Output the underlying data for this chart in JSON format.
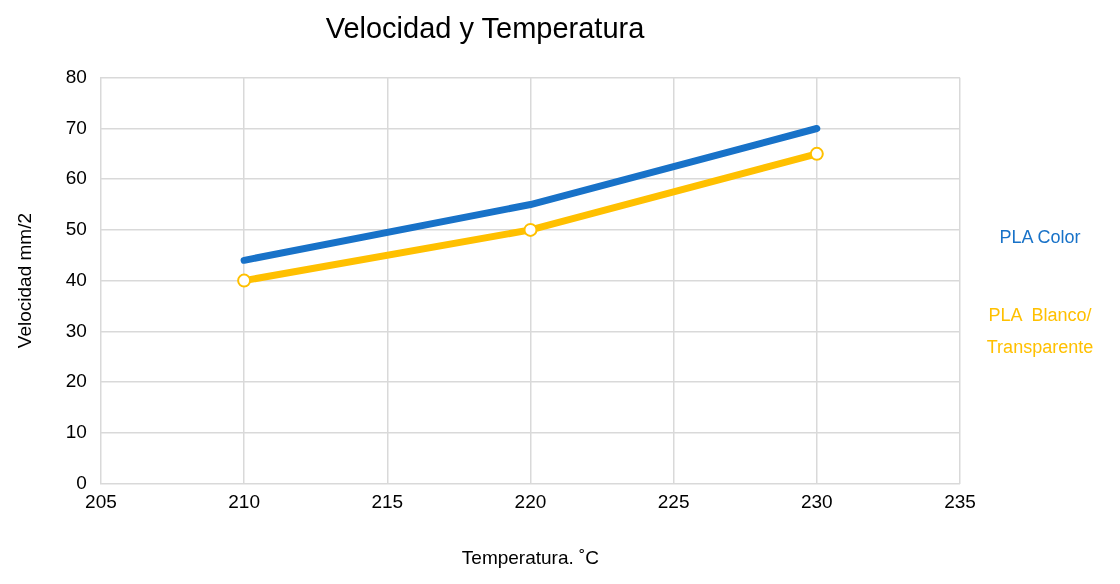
{
  "chart_data": {
    "type": "line",
    "title": "Velocidad y Temperatura",
    "xlabel": "Temperatura. ˚C",
    "ylabel": "Velocidad mm/2",
    "x": [
      210,
      220,
      230
    ],
    "series": [
      {
        "name": "PLA Color",
        "color": "#1872c8",
        "values": [
          44,
          55,
          70
        ]
      },
      {
        "name": "PLA  Blanco/ Transparente",
        "color": "#ffc000",
        "values": [
          40,
          50,
          65
        ],
        "marker": "circle"
      }
    ],
    "xlim": [
      205,
      235
    ],
    "xticks": [
      205,
      210,
      215,
      220,
      225,
      230,
      235
    ],
    "ylim": [
      0,
      80
    ],
    "yticks": [
      0,
      10,
      20,
      30,
      40,
      50,
      60,
      70,
      80
    ],
    "grid": true,
    "legend": "right",
    "marker": "none",
    "line_style": "solid"
  }
}
